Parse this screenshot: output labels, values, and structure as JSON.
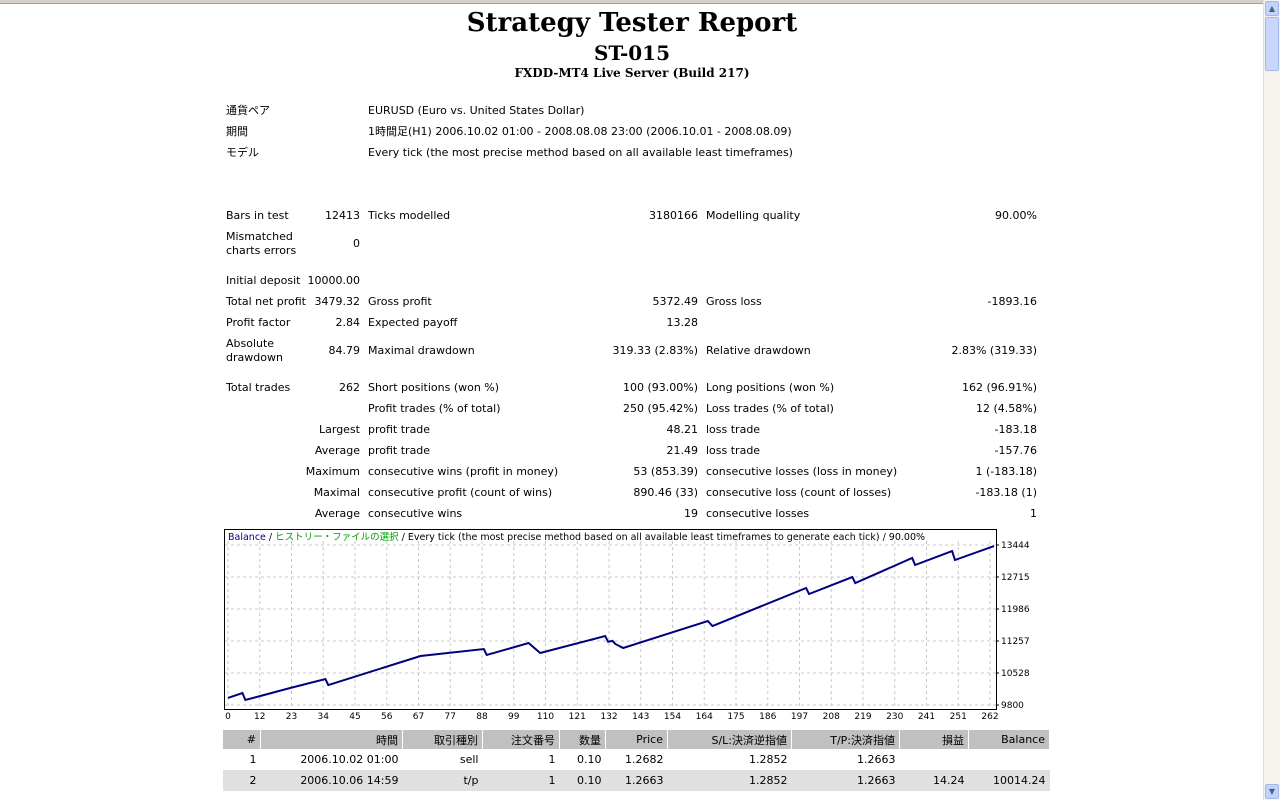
{
  "header": {
    "title": "Strategy Tester Report",
    "subtitle": "ST-015",
    "server": "FXDD-MT4 Live Server (Build 217)"
  },
  "info": [
    {
      "label": "通貨ペア",
      "value": "EURUSD (Euro vs. United States Dollar)"
    },
    {
      "label": "期間",
      "value": "1時間足(H1) 2006.10.02 01:00 - 2008.08.08 23:00 (2006.10.01 - 2008.08.09)"
    },
    {
      "label": "モデル",
      "value": "Every tick (the most precise method based on all available least timeframes)"
    }
  ],
  "stats": [
    {
      "c": [
        "Bars in test",
        "12413",
        "Ticks modelled",
        "3180166",
        "Modelling quality",
        "90.00%"
      ]
    },
    {
      "c": [
        "Mismatched charts errors",
        "0",
        "",
        "",
        "",
        ""
      ]
    },
    {
      "c": [
        "Initial deposit",
        "10000.00",
        "",
        "",
        "",
        ""
      ]
    },
    {
      "c": [
        "Total net profit",
        "3479.32",
        "Gross profit",
        "5372.49",
        "Gross loss",
        "-1893.16"
      ]
    },
    {
      "c": [
        "Profit factor",
        "2.84",
        "Expected payoff",
        "13.28",
        "",
        ""
      ]
    },
    {
      "c": [
        "Absolute drawdown",
        "84.79",
        "Maximal drawdown",
        "319.33 (2.83%)",
        "Relative drawdown",
        "2.83% (319.33)"
      ]
    },
    {
      "c": [
        "Total trades",
        "262",
        "Short positions (won %)",
        "100 (93.00%)",
        "Long positions (won %)",
        "162 (96.91%)"
      ]
    },
    {
      "c": [
        "",
        "",
        "Profit trades (% of total)",
        "250 (95.42%)",
        "Loss trades (% of total)",
        "12 (4.58%)"
      ]
    },
    {
      "c": [
        "",
        "Largest",
        "profit trade",
        "48.21",
        "loss trade",
        "-183.18"
      ]
    },
    {
      "c": [
        "",
        "Average",
        "profit trade",
        "21.49",
        "loss trade",
        "-157.76"
      ]
    },
    {
      "c": [
        "",
        "Maximum",
        "consecutive wins (profit in money)",
        "53 (853.39)",
        "consecutive losses (loss in money)",
        "1 (-183.18)"
      ]
    },
    {
      "c": [
        "",
        "Maximal",
        "consecutive profit (count of wins)",
        "890.46 (33)",
        "consecutive loss (count of losses)",
        "-183.18 (1)"
      ]
    },
    {
      "c": [
        "",
        "Average",
        "consecutive wins",
        "19",
        "consecutive losses",
        "1"
      ]
    }
  ],
  "chart_data": {
    "type": "line",
    "title_parts": [
      "Balance",
      " / ",
      "ヒストリー・ファイルの選択",
      " / Every tick (the most precise method based on all available least timeframes to generate each tick) / 90.00%"
    ],
    "colors": {
      "balance": "#000080",
      "history": "#00a000"
    },
    "x_ticks": [
      0,
      12,
      23,
      34,
      45,
      56,
      67,
      77,
      88,
      99,
      110,
      121,
      132,
      143,
      154,
      164,
      175,
      186,
      197,
      208,
      219,
      230,
      241,
      251,
      262
    ],
    "y_ticks": [
      9800,
      10528,
      11257,
      11986,
      12715,
      13444
    ],
    "xlim": [
      0,
      265
    ],
    "ylim": [
      9800,
      13444
    ],
    "series": [
      {
        "name": "Balance",
        "points": [
          [
            0,
            9960
          ],
          [
            5,
            10073
          ],
          [
            6,
            9914
          ],
          [
            21.5,
            10187
          ],
          [
            33.7,
            10392
          ],
          [
            34.7,
            10255
          ],
          [
            66.6,
            10916
          ],
          [
            88.5,
            11075
          ],
          [
            89.5,
            10939
          ],
          [
            104,
            11212
          ],
          [
            108,
            10984
          ],
          [
            130.5,
            11371
          ],
          [
            131.5,
            11240
          ],
          [
            133,
            11260
          ],
          [
            134,
            11190
          ],
          [
            136.7,
            11098
          ],
          [
            166,
            11713
          ],
          [
            167.6,
            11599
          ],
          [
            200,
            12465
          ],
          [
            201,
            12328
          ],
          [
            216,
            12715
          ],
          [
            217,
            12578
          ],
          [
            236.7,
            13148
          ],
          [
            237.7,
            12988
          ],
          [
            250.5,
            13307
          ],
          [
            251.5,
            13102
          ],
          [
            265,
            13421
          ]
        ]
      }
    ]
  },
  "trades": {
    "headers": [
      "#",
      "時間",
      "取引種別",
      "注文番号",
      "数量",
      "Price",
      "S/L:決済逆指値",
      "T/P:決済指値",
      "損益",
      "Balance"
    ],
    "rows": [
      [
        "1",
        "2006.10.02 01:00",
        "sell",
        "1",
        "0.10",
        "1.2682",
        "1.2852",
        "1.2663",
        "",
        ""
      ],
      [
        "2",
        "2006.10.06 14:59",
        "t/p",
        "1",
        "0.10",
        "1.2663",
        "1.2852",
        "1.2663",
        "14.24",
        "10014.24"
      ]
    ]
  }
}
